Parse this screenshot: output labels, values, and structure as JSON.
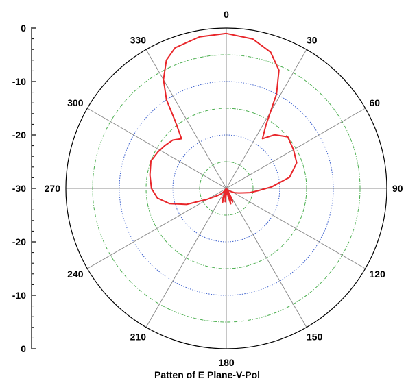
{
  "chart_data": {
    "type": "polar-line",
    "title": "Patten of E Plane-V-Pol",
    "angle_tick_labels": [
      "0",
      "30",
      "60",
      "90",
      "120",
      "150",
      "180",
      "210",
      "240",
      "270",
      "300",
      "330"
    ],
    "radial_axis": {
      "tick_labels": [
        "0",
        "-10",
        "-20",
        "-30",
        "-20",
        "-10",
        "0"
      ],
      "range_db": [
        -30,
        0
      ],
      "rings_db": [
        -5,
        -10,
        -15,
        -20,
        -25
      ]
    },
    "grid": true,
    "colors": {
      "trace": "#e8262a",
      "spoke": "#8c8c8c",
      "ring_blue": "#3a5fcd",
      "ring_green": "#4caf50",
      "frame": "#000000"
    },
    "series": [
      {
        "angles_deg": [
          0,
          10,
          18,
          24,
          28,
          32,
          36,
          42,
          50,
          60,
          70,
          80,
          88,
          94,
          100,
          105,
          110,
          118,
          125,
          132,
          140,
          148,
          152,
          155,
          158,
          160,
          162,
          164,
          167,
          170,
          175,
          180,
          185,
          190,
          195,
          200,
          205,
          210,
          215,
          220,
          225,
          230,
          240,
          248,
          255,
          262,
          270,
          280,
          290,
          298,
          305,
          312,
          318,
          323,
          326,
          330,
          335,
          340,
          350
        ],
        "gain_db": [
          -1.0,
          -1.6,
          -3.2,
          -5.8,
          -10.0,
          -16.0,
          -18.5,
          -16.5,
          -15.0,
          -15.5,
          -16.0,
          -18.0,
          -21.5,
          -24.0,
          -25.5,
          -26.8,
          -27.5,
          -28.3,
          -29.0,
          -29.5,
          -29.8,
          -29.3,
          -27.8,
          -27.2,
          -28.0,
          -29.2,
          -28.0,
          -27.0,
          -28.5,
          -29.7,
          -30.0,
          -29.0,
          -27.5,
          -29.5,
          -27.3,
          -28.2,
          -29.8,
          -30.0,
          -29.6,
          -29.0,
          -28.5,
          -28.0,
          -26.0,
          -22.0,
          -19.0,
          -17.0,
          -16.0,
          -15.5,
          -15.0,
          -15.5,
          -16.0,
          -16.5,
          -17.5,
          -14.0,
          -10.0,
          -6.5,
          -3.5,
          -2.0,
          -1.2
        ]
      }
    ]
  }
}
